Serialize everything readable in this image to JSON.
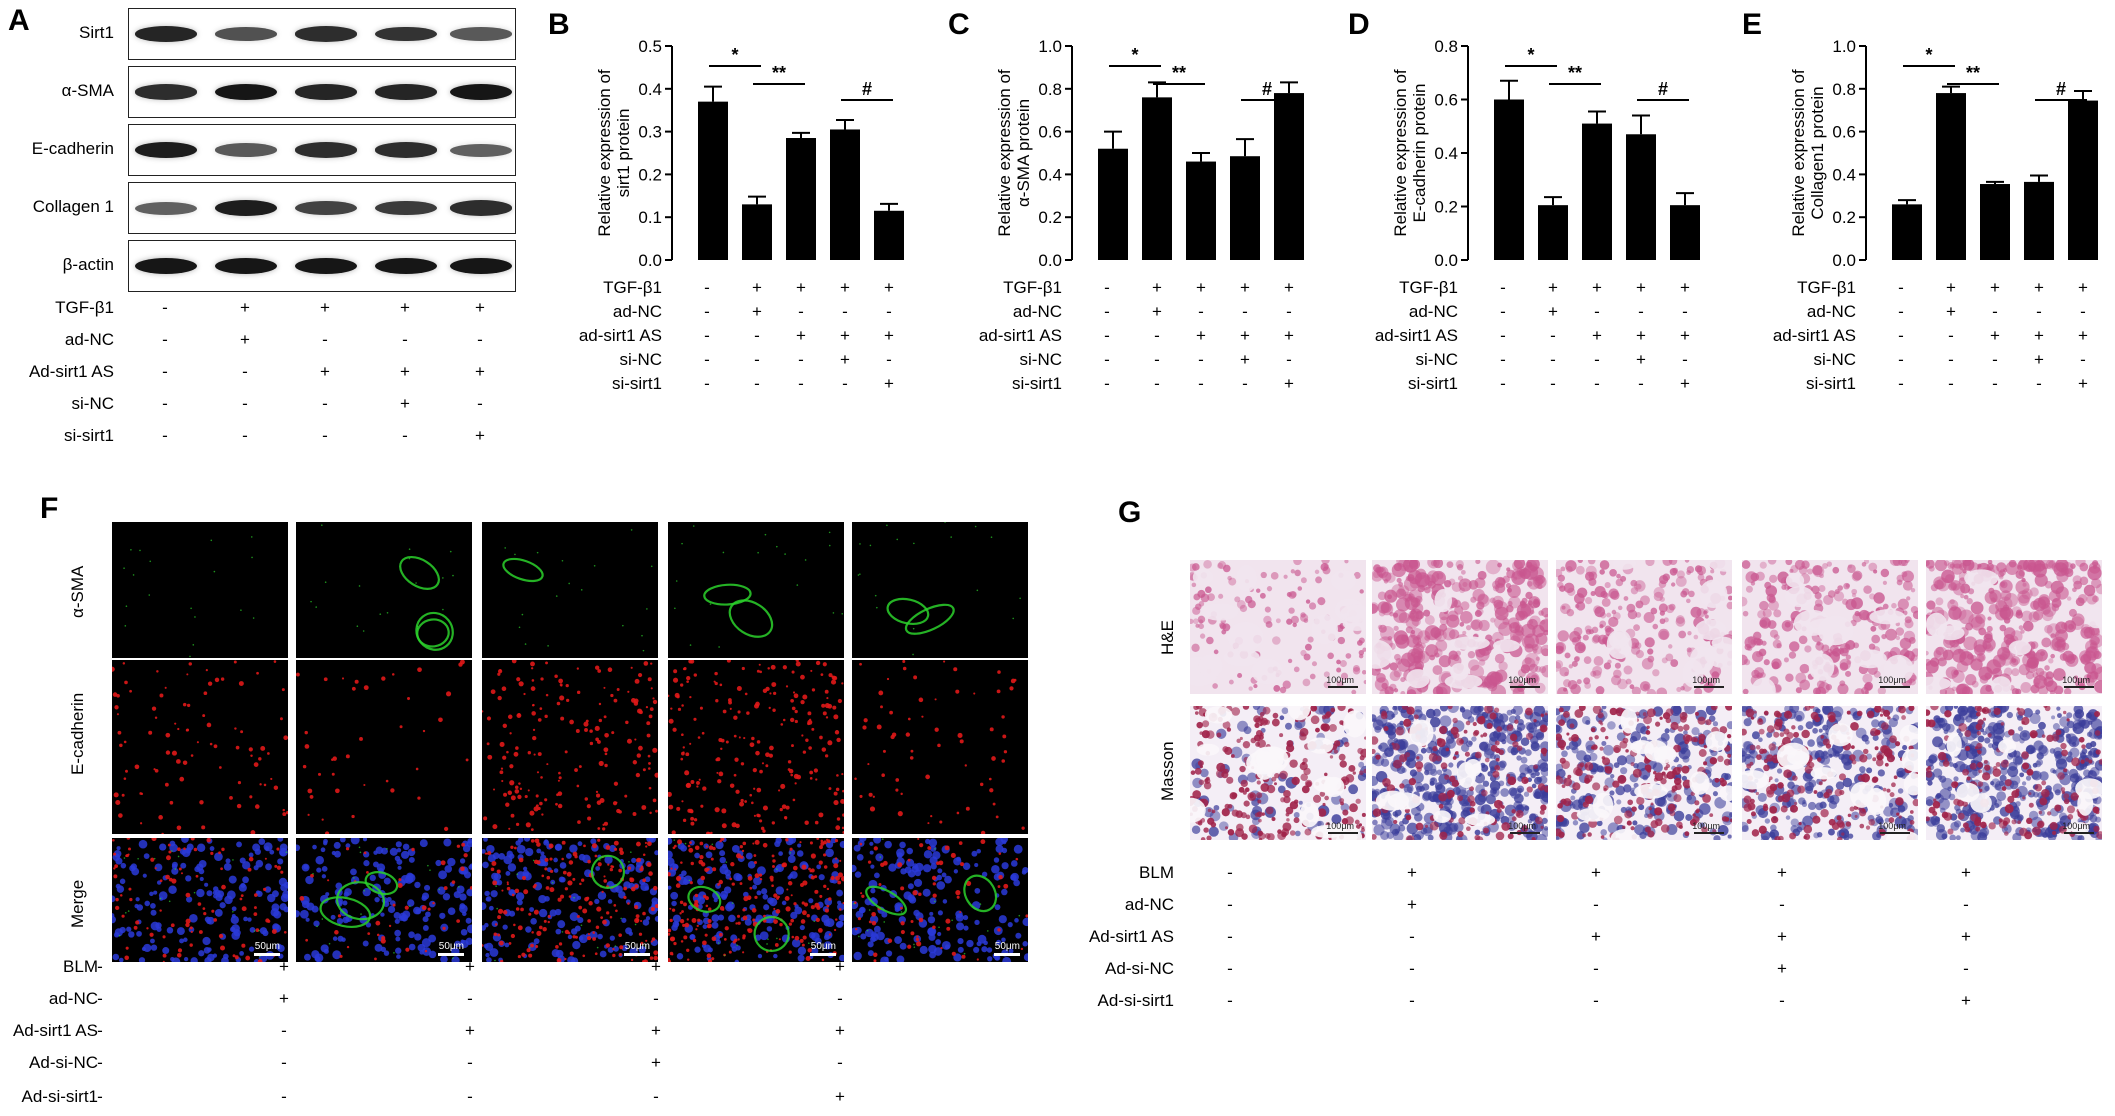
{
  "panels": {
    "A": "A",
    "B": "B",
    "C": "C",
    "D": "D",
    "E": "E",
    "F": "F",
    "G": "G"
  },
  "panelA": {
    "blot_labels": [
      "Sirt1",
      "α-SMA",
      "E-cadherin",
      "Collagen 1",
      "β-actin"
    ],
    "band_intensity": [
      [
        0.9,
        0.6,
        0.85,
        0.8,
        0.55
      ],
      [
        0.85,
        1.0,
        0.9,
        0.9,
        1.0
      ],
      [
        0.95,
        0.55,
        0.85,
        0.85,
        0.5
      ],
      [
        0.5,
        0.95,
        0.7,
        0.75,
        0.85
      ],
      [
        1.0,
        1.0,
        1.0,
        1.0,
        1.0
      ]
    ],
    "conditions": [
      {
        "label": "TGF-β1",
        "signs": [
          "-",
          "+",
          "+",
          "+",
          "+"
        ]
      },
      {
        "label": "ad-NC",
        "signs": [
          "-",
          "+",
          "-",
          "-",
          "-"
        ]
      },
      {
        "label": "Ad-sirt1 AS",
        "signs": [
          "-",
          "-",
          "+",
          "+",
          "+"
        ]
      },
      {
        "label": "si-NC",
        "signs": [
          "-",
          "-",
          "-",
          "+",
          "-"
        ]
      },
      {
        "label": "si-sirt1",
        "signs": [
          "-",
          "-",
          "-",
          "-",
          "+"
        ]
      }
    ]
  },
  "chart_data": [
    {
      "type": "bar",
      "panel": "B",
      "ylabel": "Relative expression of sirt1 protein",
      "ylabel_lines": [
        "Relative expression of",
        "sirt1 protein"
      ],
      "ylim": [
        0,
        0.5
      ],
      "yticks": [
        "0.0",
        "0.1",
        "0.2",
        "0.3",
        "0.4",
        "0.5"
      ],
      "values": [
        0.37,
        0.13,
        0.285,
        0.305,
        0.115
      ],
      "errors": [
        0.035,
        0.018,
        0.012,
        0.022,
        0.016
      ],
      "significance": [
        {
          "from": 0,
          "to": 1,
          "label": "*"
        },
        {
          "from": 1,
          "to": 2,
          "label": "**"
        },
        {
          "from": 3,
          "to": 4,
          "label": "#"
        }
      ],
      "conditions": [
        {
          "label": "TGF-β1",
          "signs": [
            "-",
            "+",
            "+",
            "+",
            "+"
          ]
        },
        {
          "label": "ad-NC",
          "signs": [
            "-",
            "+",
            "-",
            "-",
            "-"
          ]
        },
        {
          "label": "ad-sirt1 AS",
          "signs": [
            "-",
            "-",
            "+",
            "+",
            "+"
          ]
        },
        {
          "label": "si-NC",
          "signs": [
            "-",
            "-",
            "-",
            "+",
            "-"
          ]
        },
        {
          "label": "si-sirt1",
          "signs": [
            "-",
            "-",
            "-",
            "-",
            "+"
          ]
        }
      ]
    },
    {
      "type": "bar",
      "panel": "C",
      "ylabel": "Relative expression of α-SMA protein",
      "ylabel_lines": [
        "Relative expression of",
        "α-SMA protein"
      ],
      "ylim": [
        0,
        1.0
      ],
      "yticks": [
        "0.0",
        "0.2",
        "0.4",
        "0.6",
        "0.8",
        "1.0"
      ],
      "values": [
        0.52,
        0.76,
        0.46,
        0.485,
        0.78
      ],
      "errors": [
        0.08,
        0.07,
        0.04,
        0.08,
        0.05
      ],
      "significance": [
        {
          "from": 0,
          "to": 1,
          "label": "*"
        },
        {
          "from": 1,
          "to": 2,
          "label": "**"
        },
        {
          "from": 3,
          "to": 4,
          "label": "#"
        }
      ],
      "conditions": [
        {
          "label": "TGF-β1",
          "signs": [
            "-",
            "+",
            "+",
            "+",
            "+"
          ]
        },
        {
          "label": "ad-NC",
          "signs": [
            "-",
            "+",
            "-",
            "-",
            "-"
          ]
        },
        {
          "label": "ad-sirt1 AS",
          "signs": [
            "-",
            "-",
            "+",
            "+",
            "+"
          ]
        },
        {
          "label": "si-NC",
          "signs": [
            "-",
            "-",
            "-",
            "+",
            "-"
          ]
        },
        {
          "label": "si-sirt1",
          "signs": [
            "-",
            "-",
            "-",
            "-",
            "+"
          ]
        }
      ]
    },
    {
      "type": "bar",
      "panel": "D",
      "ylabel": "Relative expression of E-cadherin protein",
      "ylabel_lines": [
        "Relative expression of",
        "E-cadherin protein"
      ],
      "ylim": [
        0,
        0.8
      ],
      "yticks": [
        "0.0",
        "0.2",
        "0.4",
        "0.6",
        "0.8"
      ],
      "values": [
        0.6,
        0.205,
        0.51,
        0.47,
        0.205
      ],
      "errors": [
        0.07,
        0.03,
        0.045,
        0.07,
        0.045
      ],
      "significance": [
        {
          "from": 0,
          "to": 1,
          "label": "*"
        },
        {
          "from": 1,
          "to": 2,
          "label": "**"
        },
        {
          "from": 3,
          "to": 4,
          "label": "#"
        }
      ],
      "conditions": [
        {
          "label": "TGF-β1",
          "signs": [
            "-",
            "+",
            "+",
            "+",
            "+"
          ]
        },
        {
          "label": "ad-NC",
          "signs": [
            "-",
            "+",
            "-",
            "-",
            "-"
          ]
        },
        {
          "label": "ad-sirt1 AS",
          "signs": [
            "-",
            "-",
            "+",
            "+",
            "+"
          ]
        },
        {
          "label": "si-NC",
          "signs": [
            "-",
            "-",
            "-",
            "+",
            "-"
          ]
        },
        {
          "label": "si-sirt1",
          "signs": [
            "-",
            "-",
            "-",
            "-",
            "+"
          ]
        }
      ]
    },
    {
      "type": "bar",
      "panel": "E",
      "ylabel": "Relative expression of Collagen1 protein",
      "ylabel_lines": [
        "Relative expression of",
        "Collagen1 protein"
      ],
      "ylim": [
        0,
        1.0
      ],
      "yticks": [
        "0.0",
        "0.2",
        "0.4",
        "0.6",
        "0.8",
        "1.0"
      ],
      "values": [
        0.26,
        0.78,
        0.355,
        0.365,
        0.745
      ],
      "errors": [
        0.02,
        0.03,
        0.01,
        0.03,
        0.045
      ],
      "significance": [
        {
          "from": 0,
          "to": 1,
          "label": "*"
        },
        {
          "from": 1,
          "to": 2,
          "label": "**"
        },
        {
          "from": 3,
          "to": 4,
          "label": "#"
        }
      ],
      "conditions": [
        {
          "label": "TGF-β1",
          "signs": [
            "-",
            "+",
            "+",
            "+",
            "+"
          ]
        },
        {
          "label": "ad-NC",
          "signs": [
            "-",
            "+",
            "-",
            "-",
            "-"
          ]
        },
        {
          "label": "ad-sirt1 AS",
          "signs": [
            "-",
            "-",
            "+",
            "+",
            "+"
          ]
        },
        {
          "label": "si-NC",
          "signs": [
            "-",
            "-",
            "-",
            "+",
            "-"
          ]
        },
        {
          "label": "si-sirt1",
          "signs": [
            "-",
            "-",
            "-",
            "-",
            "+"
          ]
        }
      ]
    }
  ],
  "panelF": {
    "row_labels": [
      "α-SMA",
      "E-cadherin",
      "Merge"
    ],
    "scale_label": "50μm",
    "colors": {
      "green": "#2bd12b",
      "red": "#e01818",
      "blue": "#2a3ad8"
    },
    "conditions": [
      {
        "label": "BLM",
        "signs": [
          "-",
          "+",
          "+",
          "+",
          "+"
        ]
      },
      {
        "label": "ad-NC",
        "signs": [
          "-",
          "+",
          "-",
          "-",
          "-"
        ]
      },
      {
        "label": "Ad-sirt1 AS",
        "signs": [
          "-",
          "-",
          "+",
          "+",
          "+"
        ]
      },
      {
        "label": "Ad-si-NC",
        "signs": [
          "-",
          "-",
          "-",
          "+",
          "-"
        ]
      },
      {
        "label": "Ad-si-sirt1",
        "signs": [
          "-",
          "-",
          "-",
          "-",
          "+"
        ]
      }
    ]
  },
  "panelG": {
    "row_labels": [
      "H&E",
      "Masson"
    ],
    "scale_label": "100μm",
    "colors": {
      "he_bg": "#f1e4ee",
      "he_tissue": "#c9568f",
      "masson_red": "#a0234a",
      "masson_blue": "#3b3d9a"
    },
    "conditions": [
      {
        "label": "BLM",
        "signs": [
          "-",
          "+",
          "+",
          "+",
          "+"
        ]
      },
      {
        "label": "ad-NC",
        "signs": [
          "-",
          "+",
          "-",
          "-",
          "-"
        ]
      },
      {
        "label": "Ad-sirt1 AS",
        "signs": [
          "-",
          "-",
          "+",
          "+",
          "+"
        ]
      },
      {
        "label": "Ad-si-NC",
        "signs": [
          "-",
          "-",
          "-",
          "+",
          "-"
        ]
      },
      {
        "label": "Ad-si-sirt1",
        "signs": [
          "-",
          "-",
          "-",
          "-",
          "+"
        ]
      }
    ]
  }
}
